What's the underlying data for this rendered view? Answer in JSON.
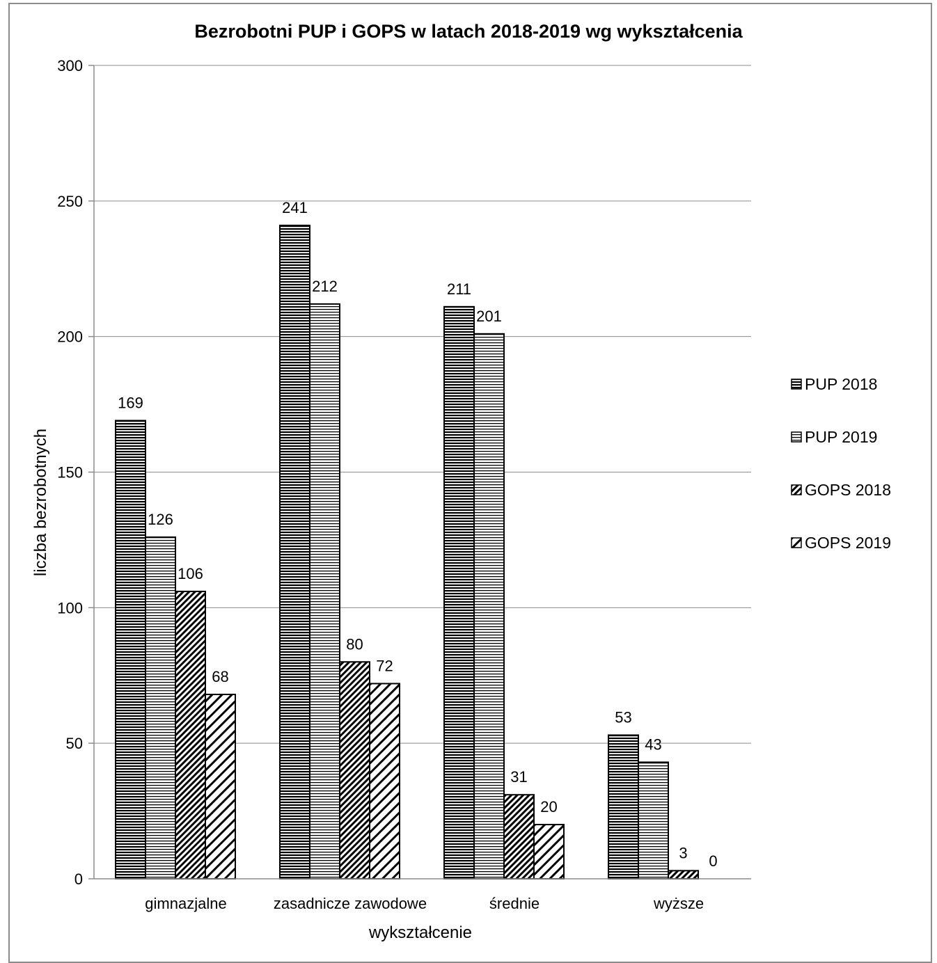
{
  "chart_data": {
    "type": "bar",
    "title": "Bezrobotni PUP i GOPS w latach 2018-2019 wg wykształcenia",
    "xlabel": "wykształcenie",
    "ylabel": "liczba bezrobotnych",
    "ylim": [
      0,
      300
    ],
    "yticks": [
      "0",
      "50",
      "100",
      "150",
      "200",
      "250",
      "300"
    ],
    "ytick_values": [
      0,
      50,
      100,
      150,
      200,
      250,
      300
    ],
    "grid": true,
    "legend_position": "right",
    "categories": [
      "gimnazjalne",
      "zasadnicze zawodowe",
      "średnie",
      "wyższe"
    ],
    "series": [
      {
        "name": "PUP 2018",
        "pattern": "dense-horizontal",
        "values": [
          169,
          241,
          211,
          53
        ]
      },
      {
        "name": "PUP 2019",
        "pattern": "horizontal",
        "values": [
          126,
          212,
          201,
          43
        ]
      },
      {
        "name": "GOPS 2018",
        "pattern": "dense-diagonal",
        "values": [
          106,
          80,
          31,
          3
        ]
      },
      {
        "name": "GOPS 2019",
        "pattern": "diagonal",
        "values": [
          68,
          72,
          20,
          0
        ]
      }
    ],
    "colors": {
      "bar_stroke": "#000000",
      "grid": "#8c8c8c",
      "background": "#ffffff"
    }
  }
}
